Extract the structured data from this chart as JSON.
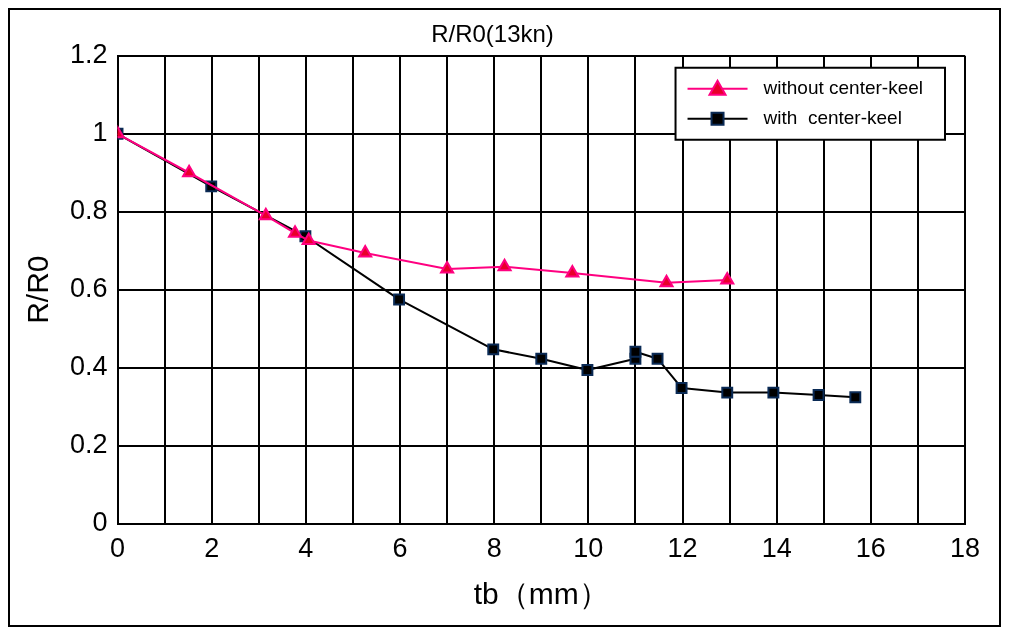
{
  "chart_data": {
    "type": "line",
    "title": "R/R0(13kn)",
    "xlabel": "tb（mm）",
    "ylabel": "R/R0",
    "xlim": [
      0,
      18
    ],
    "xticks": [
      0,
      {
        "value": 1,
        "label": null
      },
      2,
      {
        "value": 3,
        "label": null
      },
      4,
      {
        "value": 5,
        "label": null
      },
      6,
      {
        "value": 7,
        "label": null
      },
      8,
      {
        "value": 9,
        "label": null
      },
      10,
      {
        "value": 11,
        "label": null
      },
      12,
      {
        "value": 13,
        "label": null
      },
      14,
      {
        "value": 15,
        "label": null
      },
      16,
      {
        "value": 17,
        "label": null
      },
      18
    ],
    "ylim": [
      0,
      1.2
    ],
    "yticks": [
      0,
      0.2,
      0.4,
      0.6,
      0.8,
      1,
      1.2
    ],
    "grid": true,
    "legend": "top right",
    "line_style": "solid",
    "series": [
      {
        "name": "without center-keel",
        "color": "#ff0080",
        "marker": "triangle",
        "x": [
          0,
          1.52,
          3.15,
          3.77,
          4.06,
          5.26,
          7.0,
          8.22,
          9.66,
          11.66,
          12.95
        ],
        "values": [
          1.0,
          0.9,
          0.79,
          0.745,
          0.726,
          0.694,
          0.653,
          0.659,
          0.643,
          0.618,
          0.625
        ]
      },
      {
        "name": "with  center-keel",
        "color": "#000000",
        "marker": "square",
        "x": [
          0,
          1.99,
          3.99,
          5.98,
          7.98,
          9.0,
          9.98,
          11.0,
          11.0,
          11.47,
          11.98,
          12.95,
          13.93,
          14.89,
          15.67
        ],
        "values": [
          1.0,
          0.865,
          0.737,
          0.575,
          0.447,
          0.423,
          0.394,
          0.423,
          0.441,
          0.423,
          0.348,
          0.336,
          0.336,
          0.33,
          0.324
        ]
      }
    ]
  }
}
